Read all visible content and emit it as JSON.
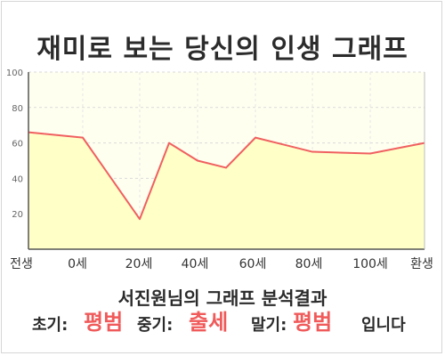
{
  "title": "재미로 보는 당신의 인생 그래프",
  "summary": "서진원님의 그래프 분석결과",
  "result": {
    "early_label": "초기:",
    "early_value": "평범",
    "mid_label": "중기:",
    "mid_value": "출세",
    "late_label": "말기:",
    "late_value": "평범",
    "suffix": "입니다"
  },
  "colors": {
    "line": "#f06060",
    "fill": "#ffffc8",
    "plot_background": "#fffff0",
    "highlight": "#f05a5a"
  },
  "chart_data": {
    "type": "area",
    "title": "",
    "xlabel": "",
    "ylabel": "",
    "ylim": [
      0,
      100
    ],
    "yticks": [
      20,
      40,
      60,
      80,
      100
    ],
    "categories": [
      "전생",
      "0세",
      "20세",
      "40세",
      "60세",
      "80세",
      "100세",
      "환생"
    ],
    "points": [
      {
        "x": "전생",
        "y": 66
      },
      {
        "x": "0세",
        "y": 63
      },
      {
        "x": "20세",
        "y": 17
      },
      {
        "x": "30세",
        "y": 60
      },
      {
        "x": "40세",
        "y": 50
      },
      {
        "x": "50세",
        "y": 46
      },
      {
        "x": "60세",
        "y": 63
      },
      {
        "x": "70세",
        "y": 59
      },
      {
        "x": "80세",
        "y": 55
      },
      {
        "x": "100세",
        "y": 54
      },
      {
        "x": "환생",
        "y": 60
      }
    ],
    "grid": true,
    "legend": "none"
  }
}
